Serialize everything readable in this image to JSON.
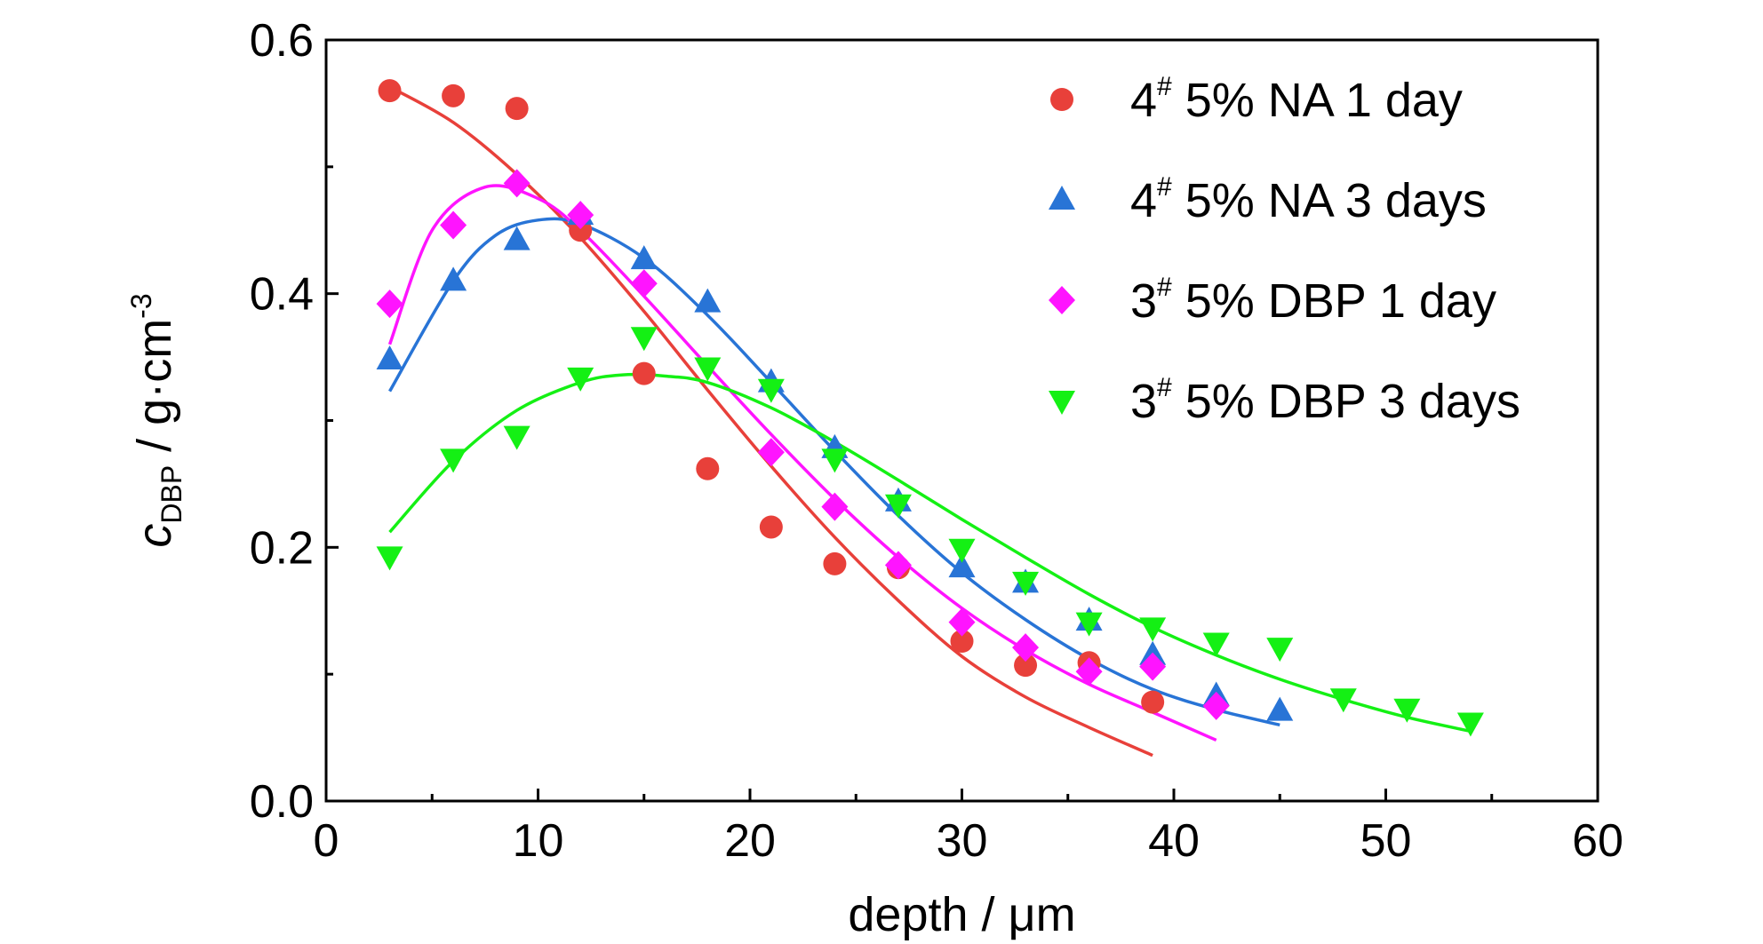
{
  "chart_data": {
    "type": "scatter",
    "title": "",
    "xlabel": "depth / μm",
    "ylabel": {
      "main": "c",
      "sub": "DBP",
      "unit": " / g·cm",
      "sup": "-3"
    },
    "xlim": [
      0,
      60
    ],
    "ylim": [
      0,
      0.6
    ],
    "xticks": [
      0,
      10,
      20,
      30,
      40,
      50,
      60
    ],
    "yticks": [
      0.0,
      0.2,
      0.4,
      0.6
    ],
    "xtick_labels": [
      "0",
      "10",
      "20",
      "30",
      "40",
      "50",
      "60"
    ],
    "ytick_labels": [
      "0.0",
      "0.2",
      "0.4",
      "0.6"
    ],
    "grid": false,
    "legend_position": "top-right",
    "series": [
      {
        "name": "4# 5% NA 1 day",
        "label": {
          "pre": "4",
          "sup": "#",
          "post": " 5% NA 1 day"
        },
        "marker": "circle",
        "color": "#e8403a",
        "x": [
          3,
          6,
          9,
          12,
          15,
          18,
          21,
          24,
          27,
          30,
          33,
          36,
          39
        ],
        "y": [
          0.56,
          0.556,
          0.546,
          0.45,
          0.337,
          0.262,
          0.216,
          0.187,
          0.184,
          0.126,
          0.107,
          0.109,
          0.078
        ],
        "fit": {
          "x": [
            3,
            6,
            9,
            12,
            15,
            18,
            21,
            24,
            27,
            30,
            33,
            36,
            39
          ],
          "y": [
            0.563,
            0.535,
            0.494,
            0.444,
            0.386,
            0.324,
            0.264,
            0.208,
            0.158,
            0.114,
            0.082,
            0.058,
            0.036
          ]
        }
      },
      {
        "name": "4# 5% NA 3 days",
        "label": {
          "pre": "4",
          "sup": "#",
          "post": " 5% NA  3 days"
        },
        "marker": "triangle-up",
        "color": "#2874d6",
        "x": [
          3,
          6,
          9,
          12,
          15,
          18,
          21,
          24,
          27,
          30,
          33,
          36,
          39,
          42,
          45
        ],
        "y": [
          0.348,
          0.41,
          0.442,
          0.462,
          0.427,
          0.393,
          0.33,
          0.278,
          0.236,
          0.184,
          0.172,
          0.142,
          0.115,
          0.083,
          0.071
        ],
        "fit": {
          "x": [
            3,
            6,
            8,
            10,
            12,
            15,
            18,
            21,
            24,
            27,
            30,
            33,
            36,
            39,
            42,
            45
          ],
          "y": [
            0.323,
            0.41,
            0.446,
            0.458,
            0.455,
            0.428,
            0.383,
            0.33,
            0.276,
            0.225,
            0.18,
            0.143,
            0.112,
            0.088,
            0.072,
            0.06
          ]
        }
      },
      {
        "name": "3# 5% DBP 1 day",
        "label": {
          "pre": "3",
          "sup": "#",
          "post": " 5% DBP 1 day"
        },
        "marker": "diamond",
        "color": "#ff14ff",
        "x": [
          3,
          6,
          9,
          12,
          15,
          21,
          24,
          27,
          30,
          33,
          36,
          39,
          42
        ],
        "y": [
          0.392,
          0.454,
          0.487,
          0.462,
          0.408,
          0.275,
          0.232,
          0.186,
          0.141,
          0.121,
          0.102,
          0.106,
          0.075
        ],
        "fit": {
          "x": [
            3,
            5,
            7.5,
            10,
            12,
            15,
            18,
            21,
            24,
            27,
            30,
            33,
            36,
            39,
            42
          ],
          "y": [
            0.36,
            0.45,
            0.484,
            0.475,
            0.45,
            0.398,
            0.343,
            0.289,
            0.238,
            0.192,
            0.152,
            0.119,
            0.092,
            0.07,
            0.048
          ]
        }
      },
      {
        "name": "3# 5% DBP 3 days",
        "label": {
          "pre": "3",
          "sup": "#",
          "post": " 5% DBP 3 days"
        },
        "marker": "triangle-down",
        "color": "#14f014",
        "x": [
          3,
          6,
          9,
          12,
          15,
          18,
          21,
          24,
          27,
          30,
          33,
          36,
          39,
          42,
          45,
          48,
          51,
          54
        ],
        "y": [
          0.193,
          0.27,
          0.288,
          0.334,
          0.366,
          0.342,
          0.325,
          0.27,
          0.234,
          0.199,
          0.173,
          0.141,
          0.137,
          0.125,
          0.121,
          0.081,
          0.073,
          0.062
        ],
        "fit": {
          "x": [
            3,
            6,
            9,
            12,
            14,
            16,
            18,
            21,
            24,
            27,
            30,
            33,
            36,
            39,
            42,
            45,
            48,
            51,
            54
          ],
          "y": [
            0.212,
            0.268,
            0.308,
            0.33,
            0.336,
            0.335,
            0.33,
            0.31,
            0.283,
            0.253,
            0.222,
            0.192,
            0.163,
            0.137,
            0.115,
            0.096,
            0.08,
            0.066,
            0.055
          ]
        }
      }
    ]
  }
}
